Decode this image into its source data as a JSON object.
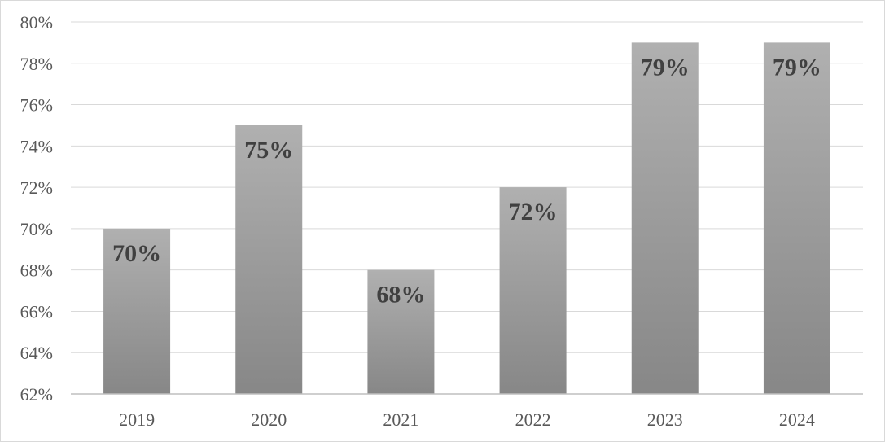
{
  "chart_data": {
    "type": "bar",
    "categories": [
      "2019",
      "2020",
      "2021",
      "2022",
      "2023",
      "2024"
    ],
    "values": [
      70,
      75,
      68,
      72,
      79,
      79
    ],
    "data_labels": [
      "70%",
      "75%",
      "68%",
      "72%",
      "79%",
      "79%"
    ],
    "title": "",
    "xlabel": "",
    "ylabel": "",
    "ylim": [
      62,
      80
    ],
    "yticks": [
      62,
      64,
      66,
      68,
      70,
      72,
      74,
      76,
      78,
      80
    ],
    "ytick_labels": [
      "62%",
      "64%",
      "66%",
      "68%",
      "70%",
      "72%",
      "74%",
      "76%",
      "78%",
      "80%"
    ],
    "grid": true,
    "legend": "none",
    "colors": {
      "bar_top": "#b0b0b0",
      "bar_bottom": "#878787",
      "grid": "#d9d9d9",
      "axis": "#bfbfbf",
      "tick_text": "#595959",
      "label_text": "#404040"
    }
  }
}
